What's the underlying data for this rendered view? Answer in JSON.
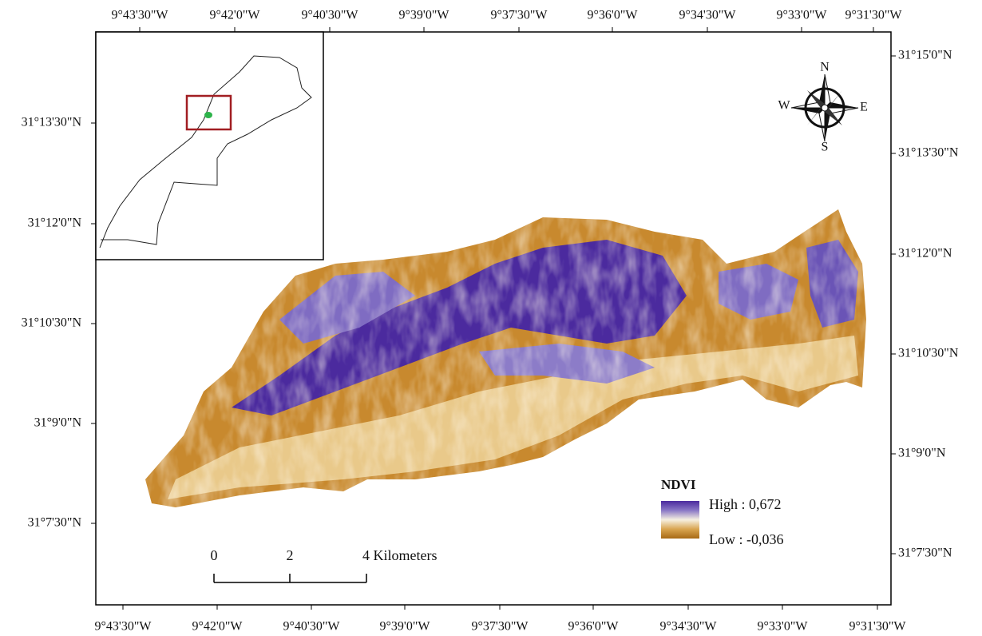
{
  "axes": {
    "top": [
      "9°43'30\"W",
      "9°42'0\"W",
      "9°40'30\"W",
      "9°39'0\"W",
      "9°37'30\"W",
      "9°36'0\"W",
      "9°34'30\"W",
      "9°33'0\"W",
      "9°31'30\"W"
    ],
    "bottom": [
      "9°43'30\"W",
      "9°42'0\"W",
      "9°40'30\"W",
      "9°39'0\"W",
      "9°37'30\"W",
      "9°36'0\"W",
      "9°34'30\"W",
      "9°33'0\"W",
      "9°31'30\"W"
    ],
    "left": [
      "31°13'30\"N",
      "31°12'0\"N",
      "31°10'30\"N",
      "31°9'0\"N",
      "31°7'30\"N"
    ],
    "right": [
      "31°15'0\"N",
      "31°13'30\"N",
      "31°12'0\"N",
      "31°10'30\"N",
      "31°9'0\"N",
      "31°7'30\"N"
    ]
  },
  "compass": {
    "n": "N",
    "w": "W",
    "e": "E",
    "s": "S"
  },
  "legend": {
    "title": "NDVI",
    "high": "High : 0,672",
    "low": "Low : -0,036"
  },
  "scale_bar": {
    "labels": [
      "0",
      "2",
      "4 Kilometers"
    ]
  }
}
